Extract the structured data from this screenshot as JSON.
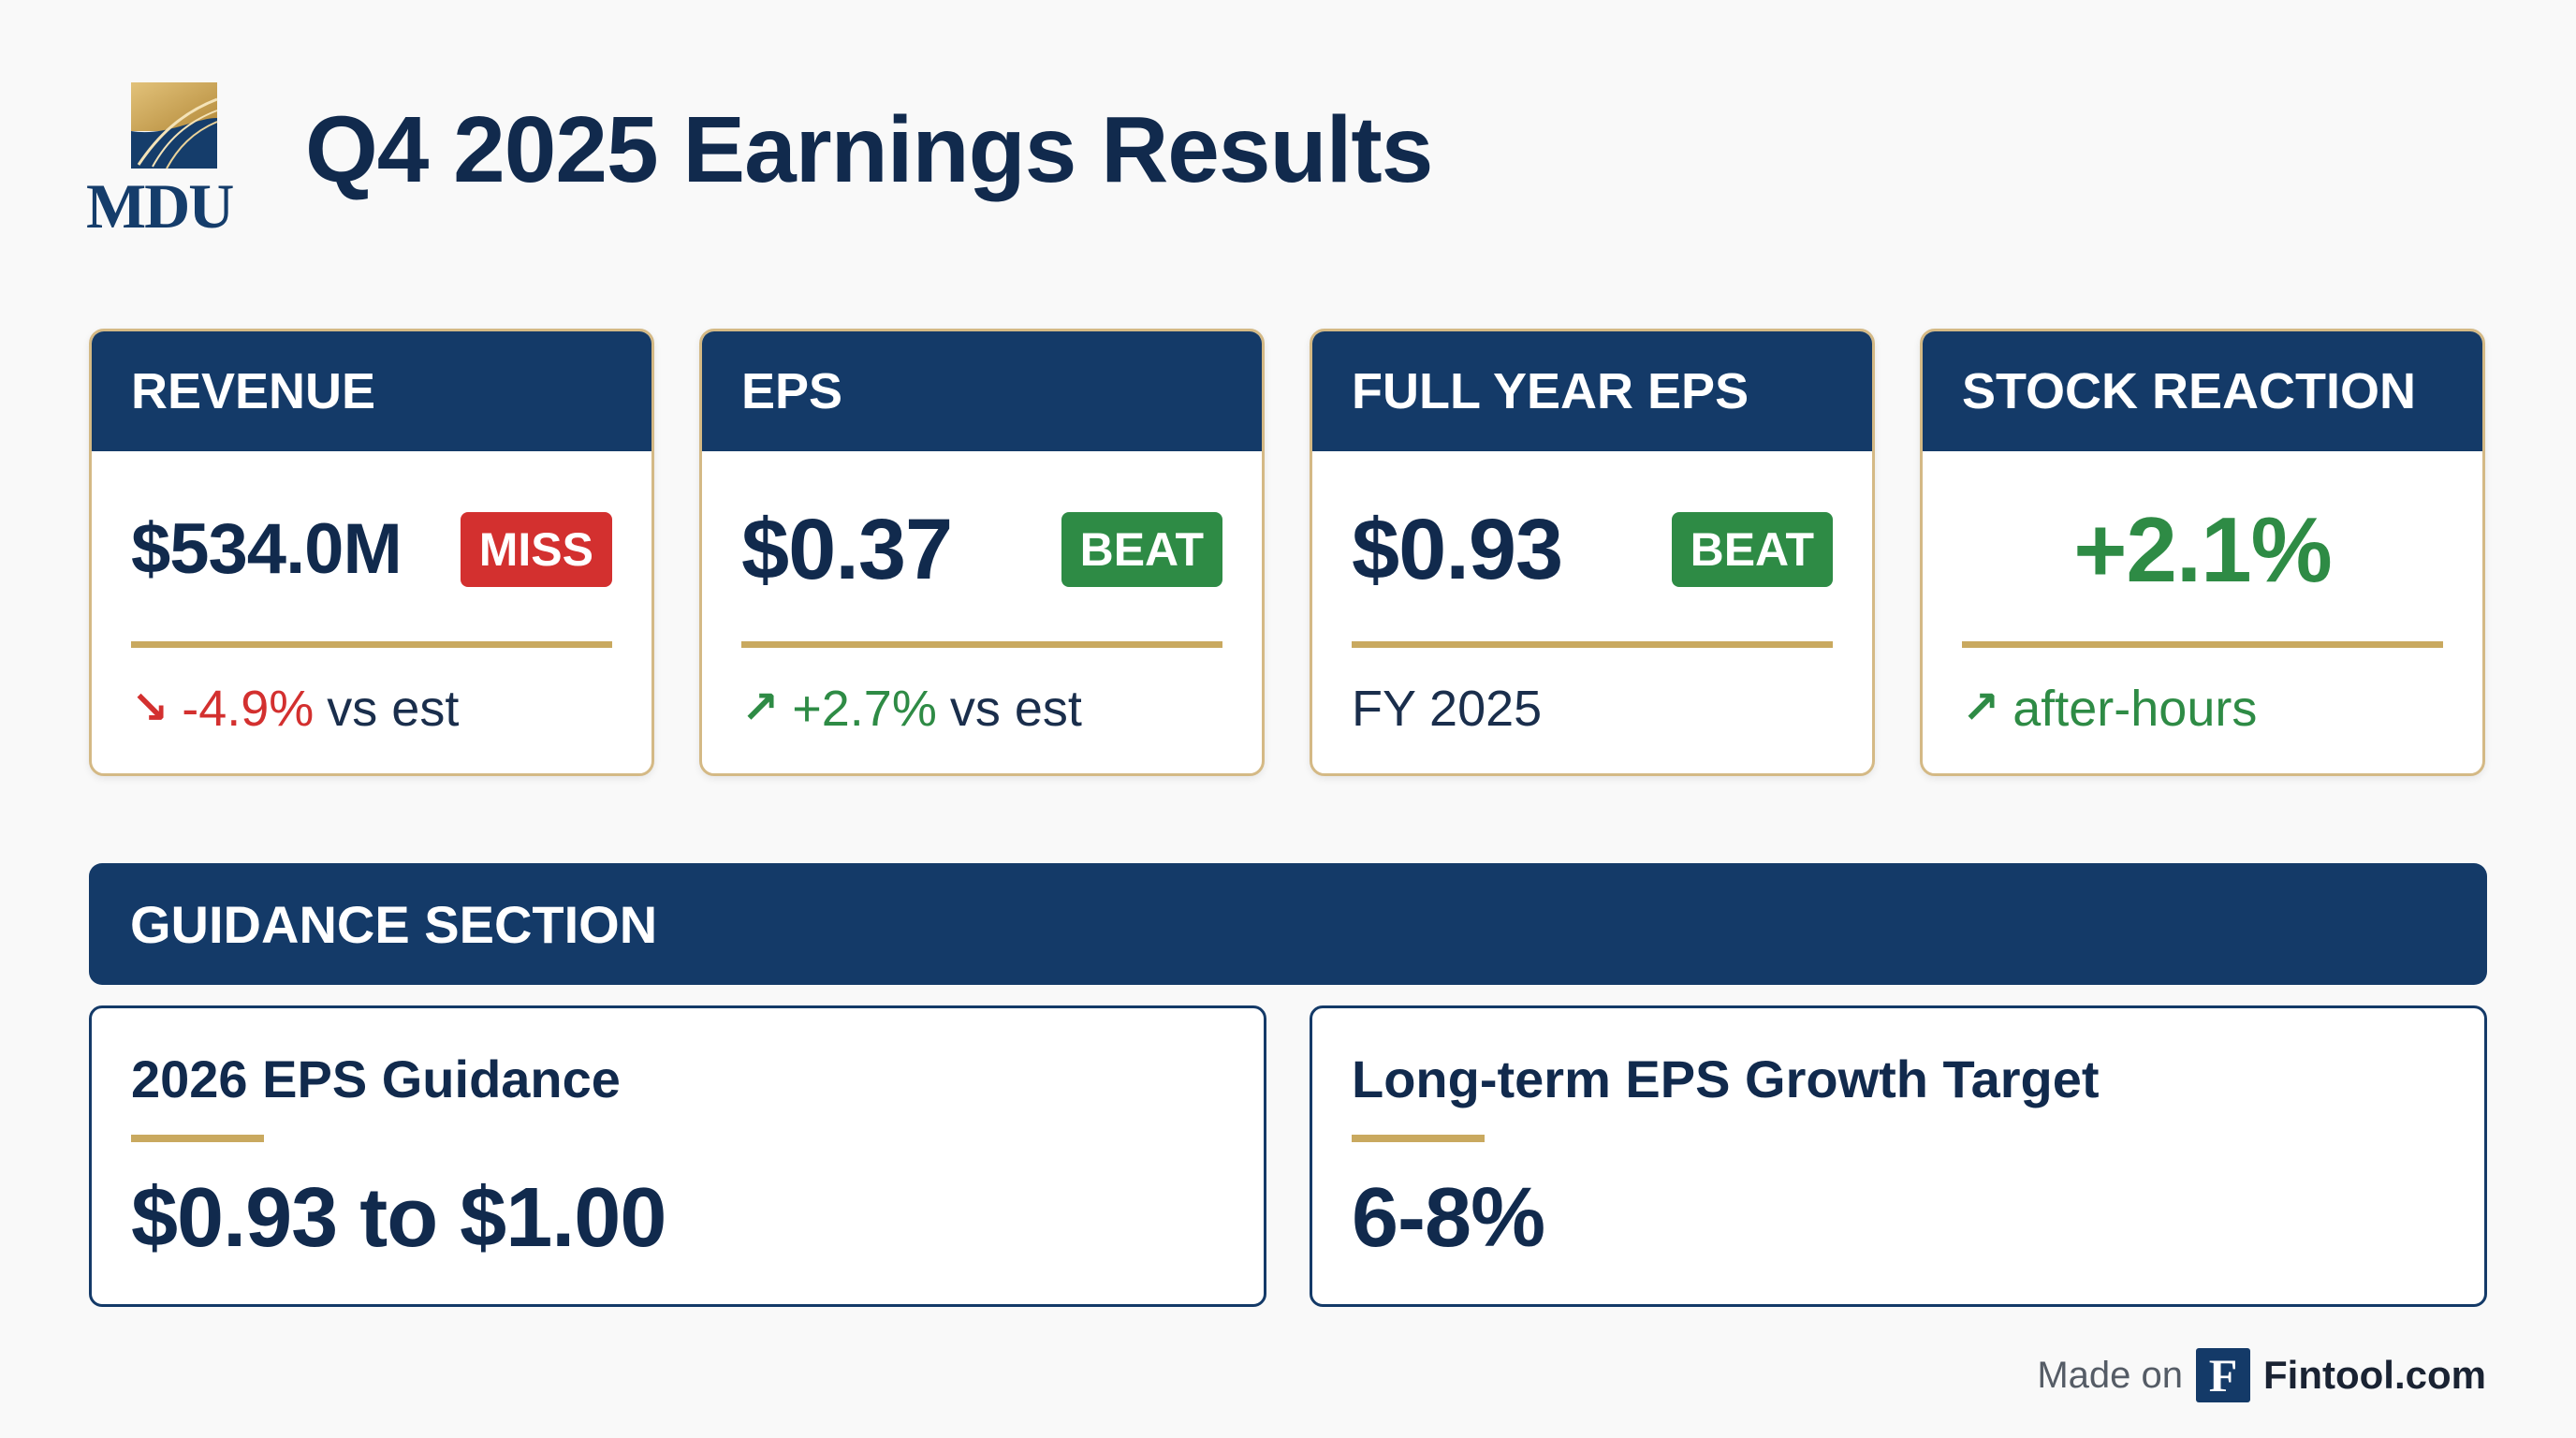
{
  "header": {
    "logo_text": "MDU",
    "title": "Q4 2025 Earnings Results"
  },
  "cards": [
    {
      "label": "REVENUE",
      "value": "$534.0M",
      "badge": "MISS",
      "foot_arrow": "↘",
      "foot_value": "-4.9%",
      "foot_text": "vs est"
    },
    {
      "label": "EPS",
      "value": "$0.37",
      "badge": "BEAT",
      "foot_arrow": "↗",
      "foot_value": "+2.7%",
      "foot_text": "vs est"
    },
    {
      "label": "FULL YEAR EPS",
      "value": "$0.93",
      "badge": "BEAT",
      "foot_text": "FY 2025"
    },
    {
      "label": "STOCK REACTION",
      "value": "+2.1%",
      "foot_arrow": "↗",
      "foot_text": "after-hours"
    }
  ],
  "guidance": {
    "section_label": "GUIDANCE SECTION",
    "items": [
      {
        "title": "2026 EPS Guidance",
        "value": "$0.93 to $1.00"
      },
      {
        "title": "Long-term EPS Growth Target",
        "value": "6-8%"
      }
    ]
  },
  "footer": {
    "made_on": "Made on",
    "logo_letter": "F",
    "brand": "Fintool.com"
  },
  "colors": {
    "navy": "#143a68",
    "gold": "#c9a95f",
    "miss_red": "#d3302f",
    "beat_green": "#2e8b45",
    "background": "#f9f9f9"
  }
}
